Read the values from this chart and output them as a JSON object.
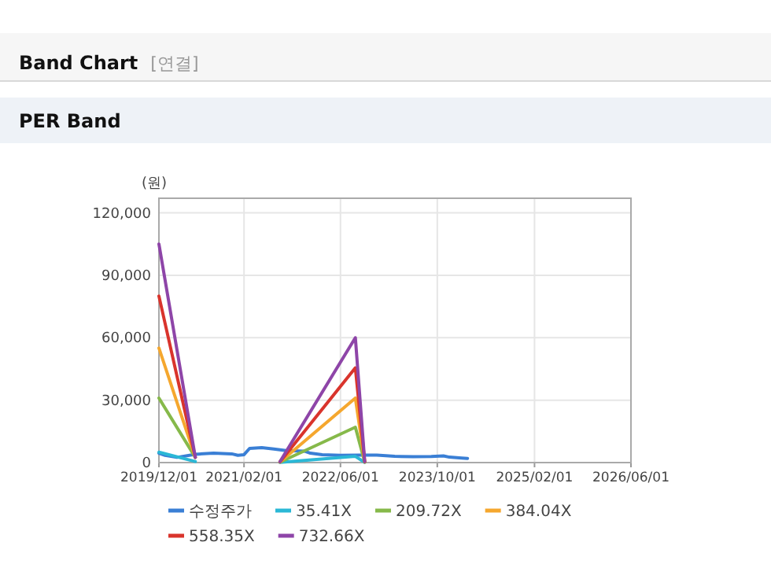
{
  "chart_data": {
    "type": "line",
    "title": "PER Band",
    "annotations": [
      "Band Chart",
      "[연결]"
    ],
    "ylabel": "(원)",
    "xlim": [
      "2019-12-01",
      "2026-06-01"
    ],
    "xticks": [
      {
        "value": "2019-12-01",
        "label": "2019/12/01"
      },
      {
        "value": "2021-02-01",
        "label": "2021/02/01"
      },
      {
        "value": "2022-06-01",
        "label": "2022/06/01"
      },
      {
        "value": "2023-10-01",
        "label": "2023/10/01"
      },
      {
        "value": "2025-02-01",
        "label": "2025/02/01"
      },
      {
        "value": "2026-06-01",
        "label": "2026/06/01"
      }
    ],
    "ylim": [
      0,
      127000
    ],
    "yticks": [
      0,
      {
        "value": 30000,
        "label": "30,000"
      },
      {
        "value": 60000,
        "label": "60,000"
      },
      {
        "value": 90000,
        "label": "90,000"
      },
      {
        "value": 120000,
        "label": "120,000"
      }
    ],
    "grid": true,
    "legend": "bottom",
    "series": [
      {
        "name": "수정주가",
        "color": "#3a7fd5",
        "x": [
          "2019-12-01",
          "2020-01-01",
          "2020-03-01",
          "2020-06-01",
          "2020-09-01",
          "2020-12-01",
          "2021-01-01",
          "2021-02-01",
          "2021-03-01",
          "2021-05-01",
          "2021-07-01",
          "2021-09-01",
          "2021-12-01",
          "2022-01-01",
          "2022-03-01",
          "2022-06-01",
          "2022-09-01",
          "2022-12-01",
          "2023-03-01",
          "2023-06-01",
          "2023-09-01",
          "2023-11-01",
          "2023-12-01",
          "2024-02-01",
          "2024-03-01"
        ],
        "values": [
          4500,
          3500,
          2500,
          4000,
          4500,
          4200,
          3500,
          3800,
          6800,
          7200,
          6500,
          5800,
          5500,
          4500,
          3800,
          3500,
          3600,
          3600,
          3000,
          2800,
          2900,
          3200,
          2600,
          2200,
          2000
        ]
      },
      {
        "name": "35.41X",
        "color": "#2bb8d6",
        "x": [
          "2019-12-01",
          "2020-06-01",
          null,
          "2021-08-01",
          "2022-08-15",
          "2022-10-01"
        ],
        "values": [
          5000,
          500,
          null,
          100,
          3000,
          100
        ]
      },
      {
        "name": "209.72X",
        "color": "#86b94a",
        "x": [
          "2019-12-01",
          "2020-06-01",
          null,
          "2021-08-01",
          "2022-08-15",
          "2022-10-01"
        ],
        "values": [
          31000,
          2500,
          null,
          200,
          17000,
          200
        ]
      },
      {
        "name": "384.04X",
        "color": "#f5a72e",
        "x": [
          "2019-12-01",
          "2020-06-01",
          null,
          "2021-08-01",
          "2022-08-15",
          "2022-10-01"
        ],
        "values": [
          55000,
          2500,
          null,
          300,
          31000,
          300
        ]
      },
      {
        "name": "558.35X",
        "color": "#d9342c",
        "x": [
          "2019-12-01",
          "2020-06-01",
          null,
          "2021-08-01",
          "2022-08-15",
          "2022-10-01"
        ],
        "values": [
          80000,
          2500,
          null,
          400,
          45500,
          400
        ]
      },
      {
        "name": "732.66X",
        "color": "#8e45a8",
        "x": [
          "2019-12-01",
          "2020-06-01",
          null,
          "2021-08-01",
          "2022-08-15",
          "2022-10-01"
        ],
        "values": [
          105000,
          2500,
          null,
          500,
          60000,
          500
        ]
      }
    ]
  }
}
